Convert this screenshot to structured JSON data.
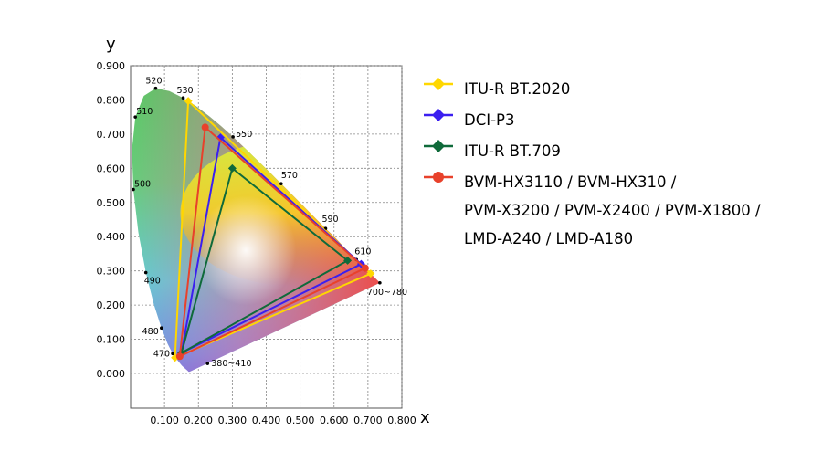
{
  "chart_data": {
    "type": "scatter",
    "title": "",
    "xlabel": "x",
    "ylabel": "y",
    "xlim": [
      0.0,
      0.8
    ],
    "ylim": [
      0.0,
      0.9
    ],
    "grid": true,
    "legend_position": "right",
    "x_ticks": [
      "0.100",
      "0.200",
      "0.300",
      "0.400",
      "0.500",
      "0.600",
      "0.700",
      "0.800"
    ],
    "y_ticks": [
      "0.000",
      "0.100",
      "0.200",
      "0.300",
      "0.400",
      "0.500",
      "0.600",
      "0.700",
      "0.800",
      "0.900"
    ],
    "wavelength_labels": [
      {
        "label": "380~410",
        "x": 0.227,
        "y": 0.029
      },
      {
        "label": "470",
        "x": 0.124,
        "y": 0.058
      },
      {
        "label": "480",
        "x": 0.091,
        "y": 0.133
      },
      {
        "label": "490",
        "x": 0.045,
        "y": 0.295
      },
      {
        "label": "500",
        "x": 0.008,
        "y": 0.538
      },
      {
        "label": "510",
        "x": 0.014,
        "y": 0.75
      },
      {
        "label": "520",
        "x": 0.074,
        "y": 0.834
      },
      {
        "label": "530",
        "x": 0.155,
        "y": 0.806
      },
      {
        "label": "550",
        "x": 0.302,
        "y": 0.692
      },
      {
        "label": "570",
        "x": 0.444,
        "y": 0.555
      },
      {
        "label": "590",
        "x": 0.575,
        "y": 0.424
      },
      {
        "label": "610",
        "x": 0.666,
        "y": 0.333
      },
      {
        "label": "700~780",
        "x": 0.735,
        "y": 0.265
      }
    ],
    "series": [
      {
        "name": "ITU-R BT.2020",
        "color": "#ffd700",
        "marker": "diamond",
        "points": [
          {
            "x": 0.708,
            "y": 0.292
          },
          {
            "x": 0.17,
            "y": 0.797
          },
          {
            "x": 0.131,
            "y": 0.046
          }
        ]
      },
      {
        "name": "DCI-P3",
        "color": "#3b1ff0",
        "marker": "diamond",
        "points": [
          {
            "x": 0.68,
            "y": 0.32
          },
          {
            "x": 0.265,
            "y": 0.69
          },
          {
            "x": 0.15,
            "y": 0.06
          }
        ]
      },
      {
        "name": "ITU-R BT.709",
        "color": "#0f6a3a",
        "marker": "diamond",
        "points": [
          {
            "x": 0.64,
            "y": 0.33
          },
          {
            "x": 0.3,
            "y": 0.6
          },
          {
            "x": 0.15,
            "y": 0.06
          }
        ]
      },
      {
        "name": "BVM-HX3110 / BVM-HX310 / PVM-X3200 / PVM-X2400 / PVM-X1800 / LMD-A240 / LMD-A180",
        "color": "#e8412b",
        "marker": "circle",
        "points": [
          {
            "x": 0.692,
            "y": 0.308
          },
          {
            "x": 0.22,
            "y": 0.72
          },
          {
            "x": 0.145,
            "y": 0.05
          }
        ]
      }
    ]
  },
  "legend": {
    "items": [
      {
        "lines": [
          "ITU-R BT.2020"
        ],
        "color": "#ffd700",
        "marker": "diamond"
      },
      {
        "lines": [
          "DCI-P3"
        ],
        "color": "#3b1ff0",
        "marker": "diamond"
      },
      {
        "lines": [
          "ITU-R BT.709"
        ],
        "color": "#0f6a3a",
        "marker": "diamond"
      },
      {
        "lines": [
          "BVM-HX3110 / BVM-HX310 /",
          "PVM-X3200 / PVM-X2400 / PVM-X1800 /",
          "LMD-A240 / LMD-A180"
        ],
        "color": "#e8412b",
        "marker": "circle"
      }
    ]
  }
}
